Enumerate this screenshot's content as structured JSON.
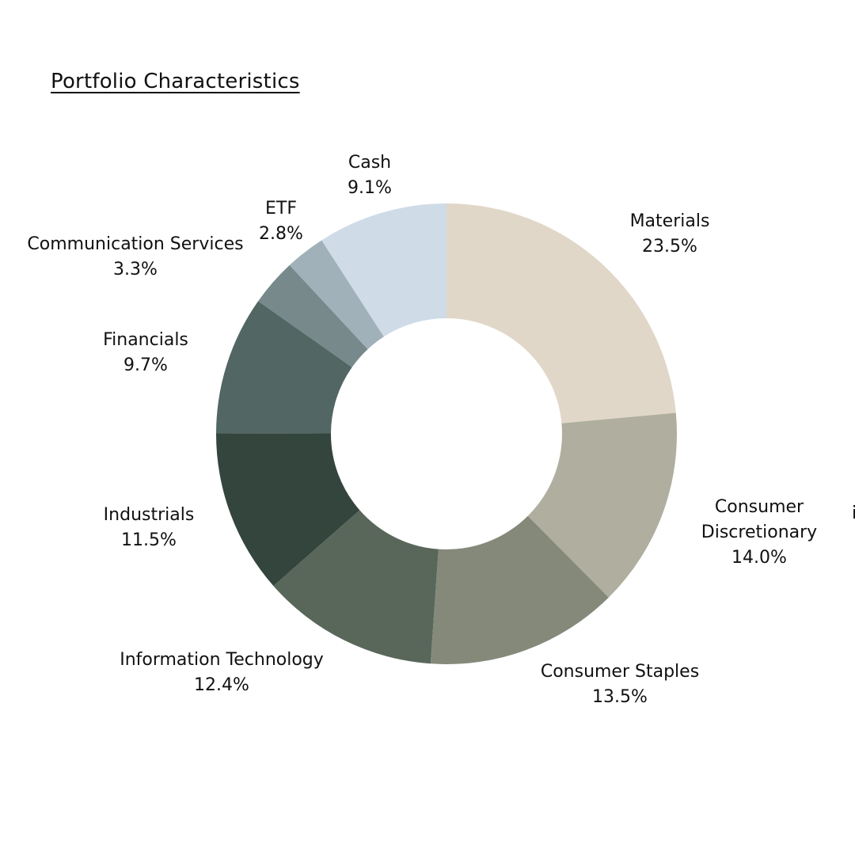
{
  "title": "Portfolio Characteristics",
  "chart_data": {
    "type": "pie",
    "title": "Portfolio Characteristics",
    "donut": true,
    "start": "12 o'clock",
    "direction": "clockwise",
    "unit": "%",
    "slices": [
      {
        "name": "Materials",
        "value": 23.5,
        "value_label": "23.5%",
        "color": "#E0D7C8"
      },
      {
        "name": "Consumer Discretionary",
        "name_lines": [
          "Consumer",
          "Discretionary"
        ],
        "value": 14.0,
        "value_label": "14.0%",
        "color": "#AFAE9F"
      },
      {
        "name": "Consumer Staples",
        "value": 13.5,
        "value_label": "13.5%",
        "color": "#84897A"
      },
      {
        "name": "Information Technology",
        "value": 12.4,
        "value_label": "12.4%",
        "color": "#59675B"
      },
      {
        "name": "Industrials",
        "value": 11.5,
        "value_label": "11.5%",
        "color": "#33453D"
      },
      {
        "name": "Financials",
        "value": 9.7,
        "value_label": "9.7%",
        "color": "#526663"
      },
      {
        "name": "Communication Services",
        "value": 3.3,
        "value_label": "3.3%",
        "color": "#78898C"
      },
      {
        "name": "ETF",
        "value": 2.8,
        "value_label": "2.8%",
        "color": "#A0B1BA"
      },
      {
        "name": "Cash",
        "value": 9.1,
        "value_label": "9.1%",
        "color": "#CFDBE7"
      }
    ]
  },
  "edge_fragment": "i"
}
